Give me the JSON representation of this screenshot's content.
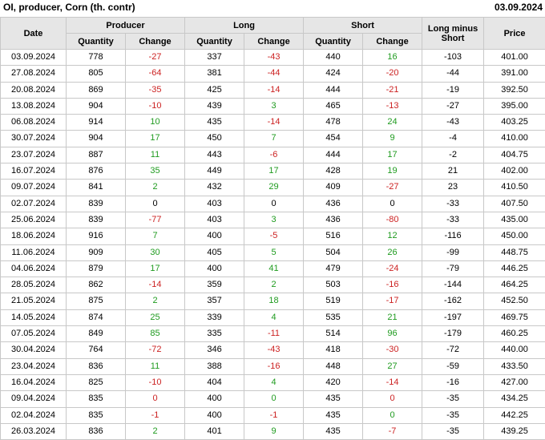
{
  "title": "OI, producer, Corn (th. contr)",
  "report_date": "03.09.2024",
  "colors": {
    "positive_change": "#1f9b1f",
    "negative_change": "#cc2222",
    "neutral_change": "#000000",
    "header_background": "#e6e6e6",
    "grid_border": "#c8c8c8"
  },
  "table": {
    "headers": {
      "date": "Date",
      "producer": "Producer",
      "long": "Long",
      "short": "Short",
      "long_minus_short": "Long minus Short",
      "price": "Price",
      "quantity": "Quantity",
      "change": "Change"
    },
    "rows": [
      {
        "date": "03.09.2024",
        "producer_qty": "778",
        "producer_chg": "-27",
        "producer_chg_color": "red",
        "long_qty": "337",
        "long_chg": "-43",
        "long_chg_color": "red",
        "short_qty": "440",
        "short_chg": "16",
        "short_chg_color": "green",
        "long_minus_short": "-103",
        "price": "401.00"
      },
      {
        "date": "27.08.2024",
        "producer_qty": "805",
        "producer_chg": "-64",
        "producer_chg_color": "red",
        "long_qty": "381",
        "long_chg": "-44",
        "long_chg_color": "red",
        "short_qty": "424",
        "short_chg": "-20",
        "short_chg_color": "red",
        "long_minus_short": "-44",
        "price": "391.00"
      },
      {
        "date": "20.08.2024",
        "producer_qty": "869",
        "producer_chg": "-35",
        "producer_chg_color": "red",
        "long_qty": "425",
        "long_chg": "-14",
        "long_chg_color": "red",
        "short_qty": "444",
        "short_chg": "-21",
        "short_chg_color": "red",
        "long_minus_short": "-19",
        "price": "392.50"
      },
      {
        "date": "13.08.2024",
        "producer_qty": "904",
        "producer_chg": "-10",
        "producer_chg_color": "red",
        "long_qty": "439",
        "long_chg": "3",
        "long_chg_color": "green",
        "short_qty": "465",
        "short_chg": "-13",
        "short_chg_color": "red",
        "long_minus_short": "-27",
        "price": "395.00"
      },
      {
        "date": "06.08.2024",
        "producer_qty": "914",
        "producer_chg": "10",
        "producer_chg_color": "green",
        "long_qty": "435",
        "long_chg": "-14",
        "long_chg_color": "red",
        "short_qty": "478",
        "short_chg": "24",
        "short_chg_color": "green",
        "long_minus_short": "-43",
        "price": "403.25"
      },
      {
        "date": "30.07.2024",
        "producer_qty": "904",
        "producer_chg": "17",
        "producer_chg_color": "green",
        "long_qty": "450",
        "long_chg": "7",
        "long_chg_color": "green",
        "short_qty": "454",
        "short_chg": "9",
        "short_chg_color": "green",
        "long_minus_short": "-4",
        "price": "410.00"
      },
      {
        "date": "23.07.2024",
        "producer_qty": "887",
        "producer_chg": "11",
        "producer_chg_color": "green",
        "long_qty": "443",
        "long_chg": "-6",
        "long_chg_color": "red",
        "short_qty": "444",
        "short_chg": "17",
        "short_chg_color": "green",
        "long_minus_short": "-2",
        "price": "404.75"
      },
      {
        "date": "16.07.2024",
        "producer_qty": "876",
        "producer_chg": "35",
        "producer_chg_color": "green",
        "long_qty": "449",
        "long_chg": "17",
        "long_chg_color": "green",
        "short_qty": "428",
        "short_chg": "19",
        "short_chg_color": "green",
        "long_minus_short": "21",
        "price": "402.00"
      },
      {
        "date": "09.07.2024",
        "producer_qty": "841",
        "producer_chg": "2",
        "producer_chg_color": "green",
        "long_qty": "432",
        "long_chg": "29",
        "long_chg_color": "green",
        "short_qty": "409",
        "short_chg": "-27",
        "short_chg_color": "red",
        "long_minus_short": "23",
        "price": "410.50"
      },
      {
        "date": "02.07.2024",
        "producer_qty": "839",
        "producer_chg": "0",
        "producer_chg_color": "black",
        "long_qty": "403",
        "long_chg": "0",
        "long_chg_color": "black",
        "short_qty": "436",
        "short_chg": "0",
        "short_chg_color": "black",
        "long_minus_short": "-33",
        "price": "407.50"
      },
      {
        "date": "25.06.2024",
        "producer_qty": "839",
        "producer_chg": "-77",
        "producer_chg_color": "red",
        "long_qty": "403",
        "long_chg": "3",
        "long_chg_color": "green",
        "short_qty": "436",
        "short_chg": "-80",
        "short_chg_color": "red",
        "long_minus_short": "-33",
        "price": "435.00"
      },
      {
        "date": "18.06.2024",
        "producer_qty": "916",
        "producer_chg": "7",
        "producer_chg_color": "green",
        "long_qty": "400",
        "long_chg": "-5",
        "long_chg_color": "red",
        "short_qty": "516",
        "short_chg": "12",
        "short_chg_color": "green",
        "long_minus_short": "-116",
        "price": "450.00"
      },
      {
        "date": "11.06.2024",
        "producer_qty": "909",
        "producer_chg": "30",
        "producer_chg_color": "green",
        "long_qty": "405",
        "long_chg": "5",
        "long_chg_color": "green",
        "short_qty": "504",
        "short_chg": "26",
        "short_chg_color": "green",
        "long_minus_short": "-99",
        "price": "448.75"
      },
      {
        "date": "04.06.2024",
        "producer_qty": "879",
        "producer_chg": "17",
        "producer_chg_color": "green",
        "long_qty": "400",
        "long_chg": "41",
        "long_chg_color": "green",
        "short_qty": "479",
        "short_chg": "-24",
        "short_chg_color": "red",
        "long_minus_short": "-79",
        "price": "446.25"
      },
      {
        "date": "28.05.2024",
        "producer_qty": "862",
        "producer_chg": "-14",
        "producer_chg_color": "red",
        "long_qty": "359",
        "long_chg": "2",
        "long_chg_color": "green",
        "short_qty": "503",
        "short_chg": "-16",
        "short_chg_color": "red",
        "long_minus_short": "-144",
        "price": "464.25"
      },
      {
        "date": "21.05.2024",
        "producer_qty": "875",
        "producer_chg": "2",
        "producer_chg_color": "green",
        "long_qty": "357",
        "long_chg": "18",
        "long_chg_color": "green",
        "short_qty": "519",
        "short_chg": "-17",
        "short_chg_color": "red",
        "long_minus_short": "-162",
        "price": "452.50"
      },
      {
        "date": "14.05.2024",
        "producer_qty": "874",
        "producer_chg": "25",
        "producer_chg_color": "green",
        "long_qty": "339",
        "long_chg": "4",
        "long_chg_color": "green",
        "short_qty": "535",
        "short_chg": "21",
        "short_chg_color": "green",
        "long_minus_short": "-197",
        "price": "469.75"
      },
      {
        "date": "07.05.2024",
        "producer_qty": "849",
        "producer_chg": "85",
        "producer_chg_color": "green",
        "long_qty": "335",
        "long_chg": "-11",
        "long_chg_color": "red",
        "short_qty": "514",
        "short_chg": "96",
        "short_chg_color": "green",
        "long_minus_short": "-179",
        "price": "460.25"
      },
      {
        "date": "30.04.2024",
        "producer_qty": "764",
        "producer_chg": "-72",
        "producer_chg_color": "red",
        "long_qty": "346",
        "long_chg": "-43",
        "long_chg_color": "red",
        "short_qty": "418",
        "short_chg": "-30",
        "short_chg_color": "red",
        "long_minus_short": "-72",
        "price": "440.00"
      },
      {
        "date": "23.04.2024",
        "producer_qty": "836",
        "producer_chg": "11",
        "producer_chg_color": "green",
        "long_qty": "388",
        "long_chg": "-16",
        "long_chg_color": "red",
        "short_qty": "448",
        "short_chg": "27",
        "short_chg_color": "green",
        "long_minus_short": "-59",
        "price": "433.50"
      },
      {
        "date": "16.04.2024",
        "producer_qty": "825",
        "producer_chg": "-10",
        "producer_chg_color": "red",
        "long_qty": "404",
        "long_chg": "4",
        "long_chg_color": "green",
        "short_qty": "420",
        "short_chg": "-14",
        "short_chg_color": "red",
        "long_minus_short": "-16",
        "price": "427.00"
      },
      {
        "date": "09.04.2024",
        "producer_qty": "835",
        "producer_chg": "0",
        "producer_chg_color": "red",
        "long_qty": "400",
        "long_chg": "0",
        "long_chg_color": "green",
        "short_qty": "435",
        "short_chg": "0",
        "short_chg_color": "red",
        "long_minus_short": "-35",
        "price": "434.25"
      },
      {
        "date": "02.04.2024",
        "producer_qty": "835",
        "producer_chg": "-1",
        "producer_chg_color": "red",
        "long_qty": "400",
        "long_chg": "-1",
        "long_chg_color": "red",
        "short_qty": "435",
        "short_chg": "0",
        "short_chg_color": "green",
        "long_minus_short": "-35",
        "price": "442.25"
      },
      {
        "date": "26.03.2024",
        "producer_qty": "836",
        "producer_chg": "2",
        "producer_chg_color": "green",
        "long_qty": "401",
        "long_chg": "9",
        "long_chg_color": "green",
        "short_qty": "435",
        "short_chg": "-7",
        "short_chg_color": "red",
        "long_minus_short": "-35",
        "price": "439.25"
      }
    ]
  },
  "chart_data": {
    "type": "table",
    "title": "OI, producer, Corn (th. contr)",
    "as_of_date": "03.09.2024",
    "columns": [
      "Date",
      "Producer Quantity",
      "Producer Change",
      "Long Quantity",
      "Long Change",
      "Short Quantity",
      "Short Change",
      "Long minus Short",
      "Price"
    ],
    "rows": [
      [
        "03.09.2024",
        778,
        -27,
        337,
        -43,
        440,
        16,
        -103,
        401.0
      ],
      [
        "27.08.2024",
        805,
        -64,
        381,
        -44,
        424,
        -20,
        -44,
        391.0
      ],
      [
        "20.08.2024",
        869,
        -35,
        425,
        -14,
        444,
        -21,
        -19,
        392.5
      ],
      [
        "13.08.2024",
        904,
        -10,
        439,
        3,
        465,
        -13,
        -27,
        395.0
      ],
      [
        "06.08.2024",
        914,
        10,
        435,
        -14,
        478,
        24,
        -43,
        403.25
      ],
      [
        "30.07.2024",
        904,
        17,
        450,
        7,
        454,
        9,
        -4,
        410.0
      ],
      [
        "23.07.2024",
        887,
        11,
        443,
        -6,
        444,
        17,
        -2,
        404.75
      ],
      [
        "16.07.2024",
        876,
        35,
        449,
        17,
        428,
        19,
        21,
        402.0
      ],
      [
        "09.07.2024",
        841,
        2,
        432,
        29,
        409,
        -27,
        23,
        410.5
      ],
      [
        "02.07.2024",
        839,
        0,
        403,
        0,
        436,
        0,
        -33,
        407.5
      ],
      [
        "25.06.2024",
        839,
        -77,
        403,
        3,
        436,
        -80,
        -33,
        435.0
      ],
      [
        "18.06.2024",
        916,
        7,
        400,
        -5,
        516,
        12,
        -116,
        450.0
      ],
      [
        "11.06.2024",
        909,
        30,
        405,
        5,
        504,
        26,
        -99,
        448.75
      ],
      [
        "04.06.2024",
        879,
        17,
        400,
        41,
        479,
        -24,
        -79,
        446.25
      ],
      [
        "28.05.2024",
        862,
        -14,
        359,
        2,
        503,
        -16,
        -144,
        464.25
      ],
      [
        "21.05.2024",
        875,
        2,
        357,
        18,
        519,
        -17,
        -162,
        452.5
      ],
      [
        "14.05.2024",
        874,
        25,
        339,
        4,
        535,
        21,
        -197,
        469.75
      ],
      [
        "07.05.2024",
        849,
        85,
        335,
        -11,
        514,
        96,
        -179,
        460.25
      ],
      [
        "30.04.2024",
        764,
        -72,
        346,
        -43,
        418,
        -30,
        -72,
        440.0
      ],
      [
        "23.04.2024",
        836,
        11,
        388,
        -16,
        448,
        27,
        -59,
        433.5
      ],
      [
        "16.04.2024",
        825,
        -10,
        404,
        4,
        420,
        -14,
        -16,
        427.0
      ],
      [
        "09.04.2024",
        835,
        0,
        400,
        0,
        435,
        0,
        -35,
        434.25
      ],
      [
        "02.04.2024",
        835,
        -1,
        400,
        -1,
        435,
        0,
        -35,
        442.25
      ],
      [
        "26.03.2024",
        836,
        2,
        401,
        9,
        435,
        -7,
        -35,
        439.25
      ]
    ]
  }
}
